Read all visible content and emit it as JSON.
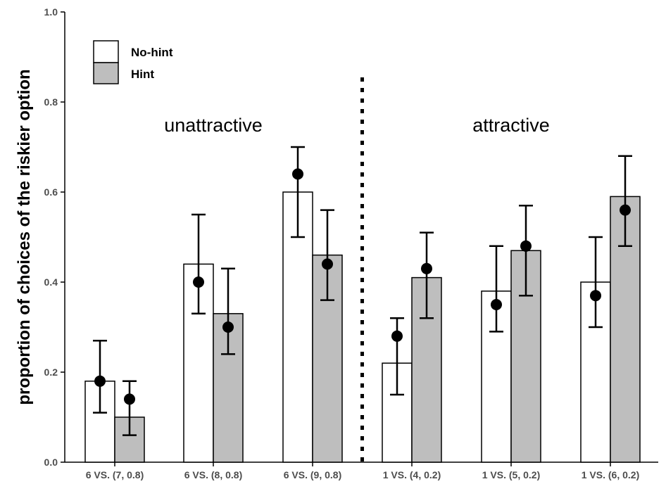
{
  "chart_data": {
    "type": "bar",
    "title": "",
    "xlabel": "",
    "ylabel": "proportion of choices of the riskier option",
    "ylim": [
      0,
      1
    ],
    "yticks": [
      "0.0",
      "0.2",
      "0.4",
      "0.6",
      "0.8",
      "1.0"
    ],
    "categories": [
      "6 VS. (7, 0.8)",
      "6 VS. (8, 0.8)",
      "6 VS. (9, 0.8)",
      "1 VS. (4, 0.2)",
      "1 VS. (5, 0.2)",
      "1 VS. (6, 0.2)"
    ],
    "series": [
      {
        "name": "No-hint",
        "color": "#ffffff",
        "values": [
          0.18,
          0.44,
          0.6,
          0.22,
          0.38,
          0.4
        ],
        "points": [
          0.18,
          0.4,
          0.64,
          0.28,
          0.35,
          0.37
        ],
        "err_low": [
          0.11,
          0.33,
          0.5,
          0.15,
          0.29,
          0.3
        ],
        "err_high": [
          0.27,
          0.55,
          0.7,
          0.32,
          0.48,
          0.5
        ]
      },
      {
        "name": "Hint",
        "color": "#bebebe",
        "values": [
          0.1,
          0.33,
          0.46,
          0.41,
          0.47,
          0.59
        ],
        "points": [
          0.14,
          0.3,
          0.44,
          0.43,
          0.48,
          0.56
        ],
        "err_low": [
          0.06,
          0.24,
          0.36,
          0.32,
          0.37,
          0.48
        ],
        "err_high": [
          0.18,
          0.43,
          0.56,
          0.51,
          0.57,
          0.68
        ]
      }
    ],
    "annotations": [
      {
        "text": "unattractive",
        "group": "left"
      },
      {
        "text": "attractive",
        "group": "right"
      }
    ],
    "legend_position": "top-left",
    "grid": false,
    "divider": "dotted vertical line between category 3 and category 4"
  }
}
